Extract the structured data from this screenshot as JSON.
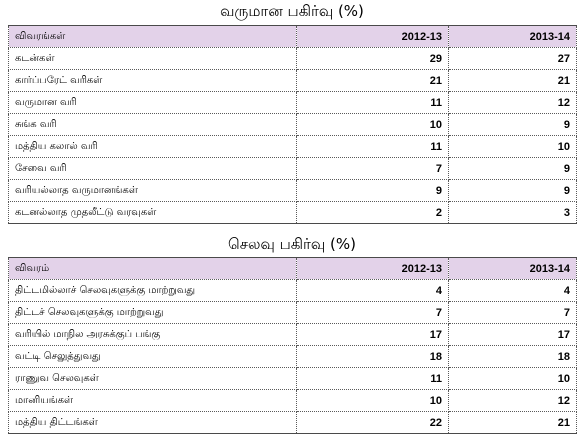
{
  "revenue": {
    "title": "வருமான பகிர்வு (%)",
    "headers": [
      "விவரங்கள்",
      "2012-13",
      "2013-14"
    ],
    "rows": [
      {
        "label": "கடன்கள்",
        "y2012": "29",
        "y2013": "27"
      },
      {
        "label": "கார்ப்பரேட் வரிகள்",
        "y2012": "21",
        "y2013": "21"
      },
      {
        "label": "வருமான வரி",
        "y2012": "11",
        "y2013": "12"
      },
      {
        "label": "சுங்க வரி",
        "y2012": "10",
        "y2013": "9"
      },
      {
        "label": "மத்திய கலால் வரி",
        "y2012": "11",
        "y2013": "10"
      },
      {
        "label": "சேவை வரி",
        "y2012": "7",
        "y2013": "9"
      },
      {
        "label": "வரியல்லாத வருமானங்கள்",
        "y2012": "9",
        "y2013": "9"
      },
      {
        "label": "கடனல்லாத முதலீட்டு வரவுகள்",
        "y2012": "2",
        "y2013": "3"
      }
    ]
  },
  "expenditure": {
    "title": "செலவு பகிர்வு (%)",
    "headers": [
      "விவரம்",
      "2012-13",
      "2013-14"
    ],
    "rows": [
      {
        "label": "திட்டமில்லாச் செலவுகளுக்கு மாற்றுவது",
        "y2012": "4",
        "y2013": "4"
      },
      {
        "label": "திட்டச் செலவுகளுக்கு மாற்றுவது",
        "y2012": "7",
        "y2013": "7"
      },
      {
        "label": "வரியில் மாநில அரசுக்குப் பங்கு",
        "y2012": "17",
        "y2013": "17"
      },
      {
        "label": "வட்டி செலுத்துவது",
        "y2012": "18",
        "y2013": "18"
      },
      {
        "label": "ராணுவ செலவுகள்",
        "y2012": "11",
        "y2013": "10"
      },
      {
        "label": "மானியங்கள்",
        "y2012": "10",
        "y2013": "12"
      },
      {
        "label": "மத்திய திட்டங்கள்",
        "y2012": "22",
        "y2013": "21"
      }
    ]
  }
}
